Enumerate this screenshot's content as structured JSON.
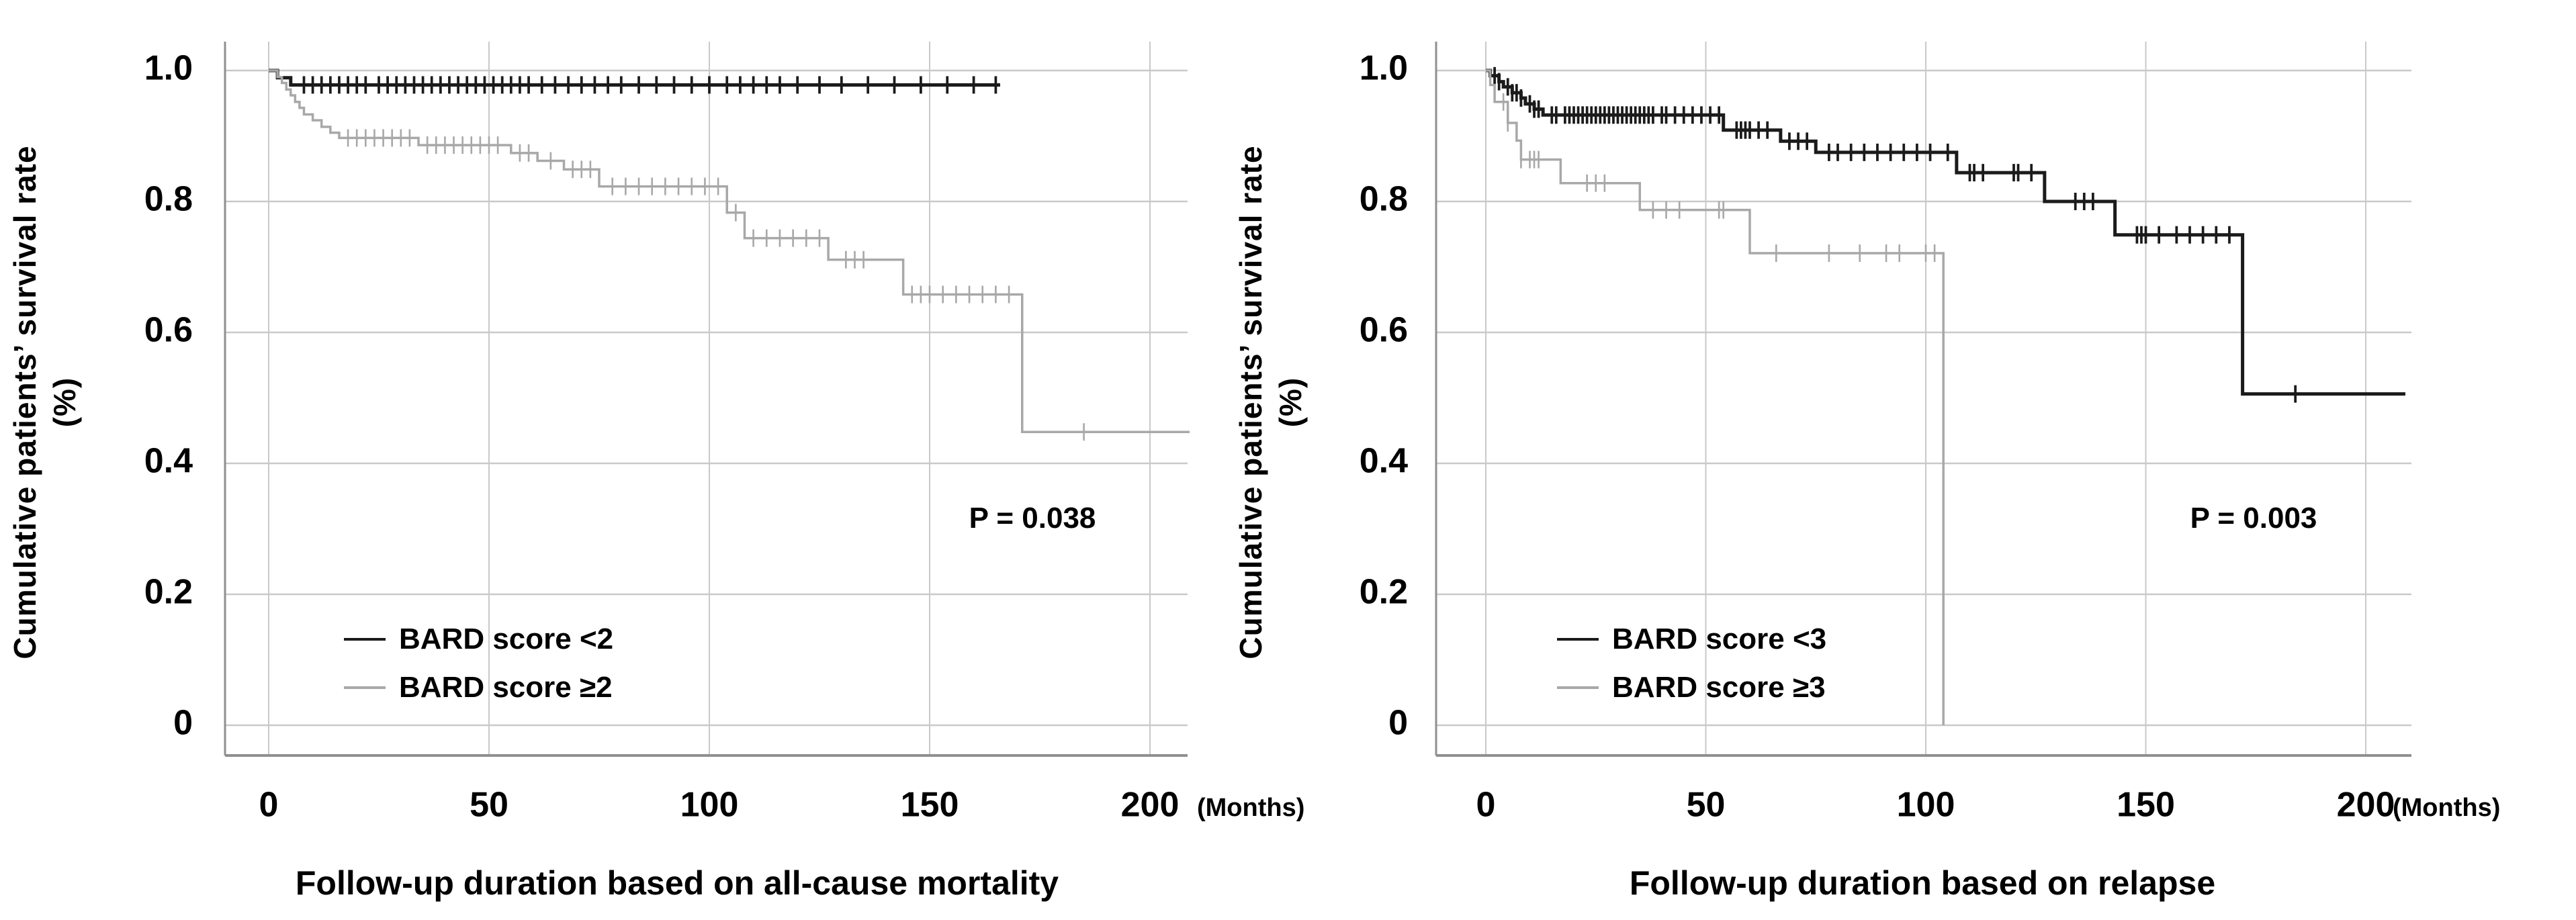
{
  "figure": {
    "background": "#ffffff",
    "grid_color": "#c9c9c9",
    "axis_color": "#8f8f8f",
    "text_color": "#000000"
  },
  "chart_data": [
    {
      "type": "line",
      "subtype": "kaplan_meier_step",
      "panel": "left",
      "ylabel": "Cumulative patients’ survival rate",
      "ylabel_unit": "(%)",
      "xlabel": "Follow-up duration based on all-cause mortality",
      "months_label": "(Months)",
      "p_label": "P = 0.038",
      "xlim": [
        0,
        209
      ],
      "ylim": [
        0,
        1.0
      ],
      "grid": true,
      "legend_position": "inside-lower-left",
      "xticks": [
        0,
        50,
        100,
        150,
        200
      ],
      "yticks": [
        {
          "label": "1.0",
          "value": 1.0
        },
        {
          "label": "0.8",
          "value": 0.8
        },
        {
          "label": "0.6",
          "value": 0.6
        },
        {
          "label": "0.4",
          "value": 0.4
        },
        {
          "label": "0.2",
          "value": 0.2
        },
        {
          "label": "0",
          "value": 0.0
        }
      ],
      "series": [
        {
          "name": "BARD score <2",
          "color": "#1b1b1b",
          "stroke_width": 5,
          "steps": [
            [
              0,
              1.0
            ],
            [
              2,
              0.989
            ],
            [
              5,
              0.978
            ],
            [
              166,
              0.978
            ]
          ],
          "censor_times": [
            8,
            10,
            12,
            14,
            16,
            18,
            20,
            22,
            25,
            27,
            29,
            31,
            33,
            35,
            37,
            39,
            41,
            43,
            45,
            47,
            49,
            51,
            53,
            55,
            57,
            59,
            62,
            65,
            68,
            71,
            74,
            77,
            80,
            84,
            88,
            92,
            96,
            100,
            104,
            107,
            110,
            113,
            116,
            120,
            125,
            130,
            136,
            142,
            148,
            154,
            160,
            165
          ]
        },
        {
          "name": "BARD score ≥2",
          "color": "#a8a8a8",
          "stroke_width": 3.5,
          "steps": [
            [
              0,
              1.0
            ],
            [
              2,
              0.99
            ],
            [
              3,
              0.981
            ],
            [
              4,
              0.971
            ],
            [
              5,
              0.962
            ],
            [
              6,
              0.952
            ],
            [
              7,
              0.943
            ],
            [
              8,
              0.933
            ],
            [
              10,
              0.924
            ],
            [
              12,
              0.914
            ],
            [
              14,
              0.905
            ],
            [
              16,
              0.897
            ],
            [
              34,
              0.886
            ],
            [
              55,
              0.874
            ],
            [
              61,
              0.862
            ],
            [
              67,
              0.849
            ],
            [
              75,
              0.823
            ],
            [
              104,
              0.783
            ],
            [
              108,
              0.744
            ],
            [
              127,
              0.711
            ],
            [
              144,
              0.658
            ],
            [
              171,
              0.448
            ],
            [
              209,
              0.448
            ]
          ],
          "censor_times": [
            18,
            20,
            22,
            24,
            26,
            28,
            30,
            32,
            36,
            38,
            40,
            42,
            44,
            46,
            48,
            50,
            52,
            57,
            59,
            64,
            69,
            71,
            73,
            78,
            81,
            84,
            87,
            90,
            93,
            96,
            99,
            102,
            106,
            110,
            113,
            116,
            119,
            122,
            125,
            131,
            133,
            135,
            146,
            148,
            150,
            153,
            156,
            159,
            162,
            165,
            168,
            185
          ]
        }
      ]
    },
    {
      "type": "line",
      "subtype": "kaplan_meier_step",
      "panel": "right",
      "ylabel": "Cumulative patients’ survival rate",
      "ylabel_unit": "(%)",
      "xlabel": "Follow-up duration based on relapse",
      "months_label": "(Months)",
      "p_label": "P = 0.003",
      "xlim": [
        0,
        209
      ],
      "ylim": [
        0,
        1.0
      ],
      "grid": true,
      "legend_position": "inside-lower-left",
      "xticks": [
        0,
        50,
        100,
        150,
        200
      ],
      "yticks": [
        {
          "label": "1.0",
          "value": 1.0
        },
        {
          "label": "0.8",
          "value": 0.8
        },
        {
          "label": "0.6",
          "value": 0.6
        },
        {
          "label": "0.4",
          "value": 0.4
        },
        {
          "label": "0.2",
          "value": 0.2
        },
        {
          "label": "0",
          "value": 0.0
        }
      ],
      "series": [
        {
          "name": "BARD score <3",
          "color": "#1b1b1b",
          "stroke_width": 5,
          "steps": [
            [
              0,
              1.0
            ],
            [
              1,
              0.992
            ],
            [
              3,
              0.983
            ],
            [
              4,
              0.975
            ],
            [
              6,
              0.966
            ],
            [
              8,
              0.958
            ],
            [
              9,
              0.949
            ],
            [
              11,
              0.941
            ],
            [
              13,
              0.932
            ],
            [
              54,
              0.909
            ],
            [
              67,
              0.892
            ],
            [
              75,
              0.875
            ],
            [
              107,
              0.844
            ],
            [
              127,
              0.8
            ],
            [
              143,
              0.749
            ],
            [
              172,
              0.506
            ],
            [
              209,
              0.506
            ]
          ],
          "censor_times": [
            2,
            3,
            5,
            6,
            7,
            8,
            10,
            11,
            12,
            15,
            16,
            18,
            19,
            20,
            21,
            22,
            23,
            24,
            25,
            26,
            27,
            28,
            29,
            30,
            31,
            32,
            33,
            34,
            35,
            36,
            37,
            38,
            40,
            41,
            43,
            45,
            47,
            49,
            51,
            53,
            57,
            58,
            59,
            60,
            62,
            64,
            69,
            71,
            73,
            78,
            80,
            83,
            86,
            89,
            92,
            95,
            98,
            101,
            105,
            110,
            111,
            113,
            120,
            121,
            124,
            134,
            136,
            138,
            148,
            149,
            150,
            153,
            157,
            160,
            163,
            166,
            169,
            184
          ]
        },
        {
          "name": "BARD score ≥3",
          "color": "#a8a8a8",
          "stroke_width": 3.5,
          "steps": [
            [
              0,
              1.0
            ],
            [
              1,
              0.978
            ],
            [
              2,
              0.952
            ],
            [
              5,
              0.92
            ],
            [
              7,
              0.893
            ],
            [
              8,
              0.864
            ],
            [
              17,
              0.828
            ],
            [
              35,
              0.787
            ],
            [
              60,
              0.721
            ],
            [
              104,
              0.0
            ]
          ],
          "censor_times": [
            4,
            5,
            8,
            10,
            11,
            12,
            23,
            25,
            27,
            38,
            41,
            44,
            53,
            54,
            66,
            78,
            85,
            91,
            94,
            100,
            102
          ]
        }
      ]
    }
  ]
}
